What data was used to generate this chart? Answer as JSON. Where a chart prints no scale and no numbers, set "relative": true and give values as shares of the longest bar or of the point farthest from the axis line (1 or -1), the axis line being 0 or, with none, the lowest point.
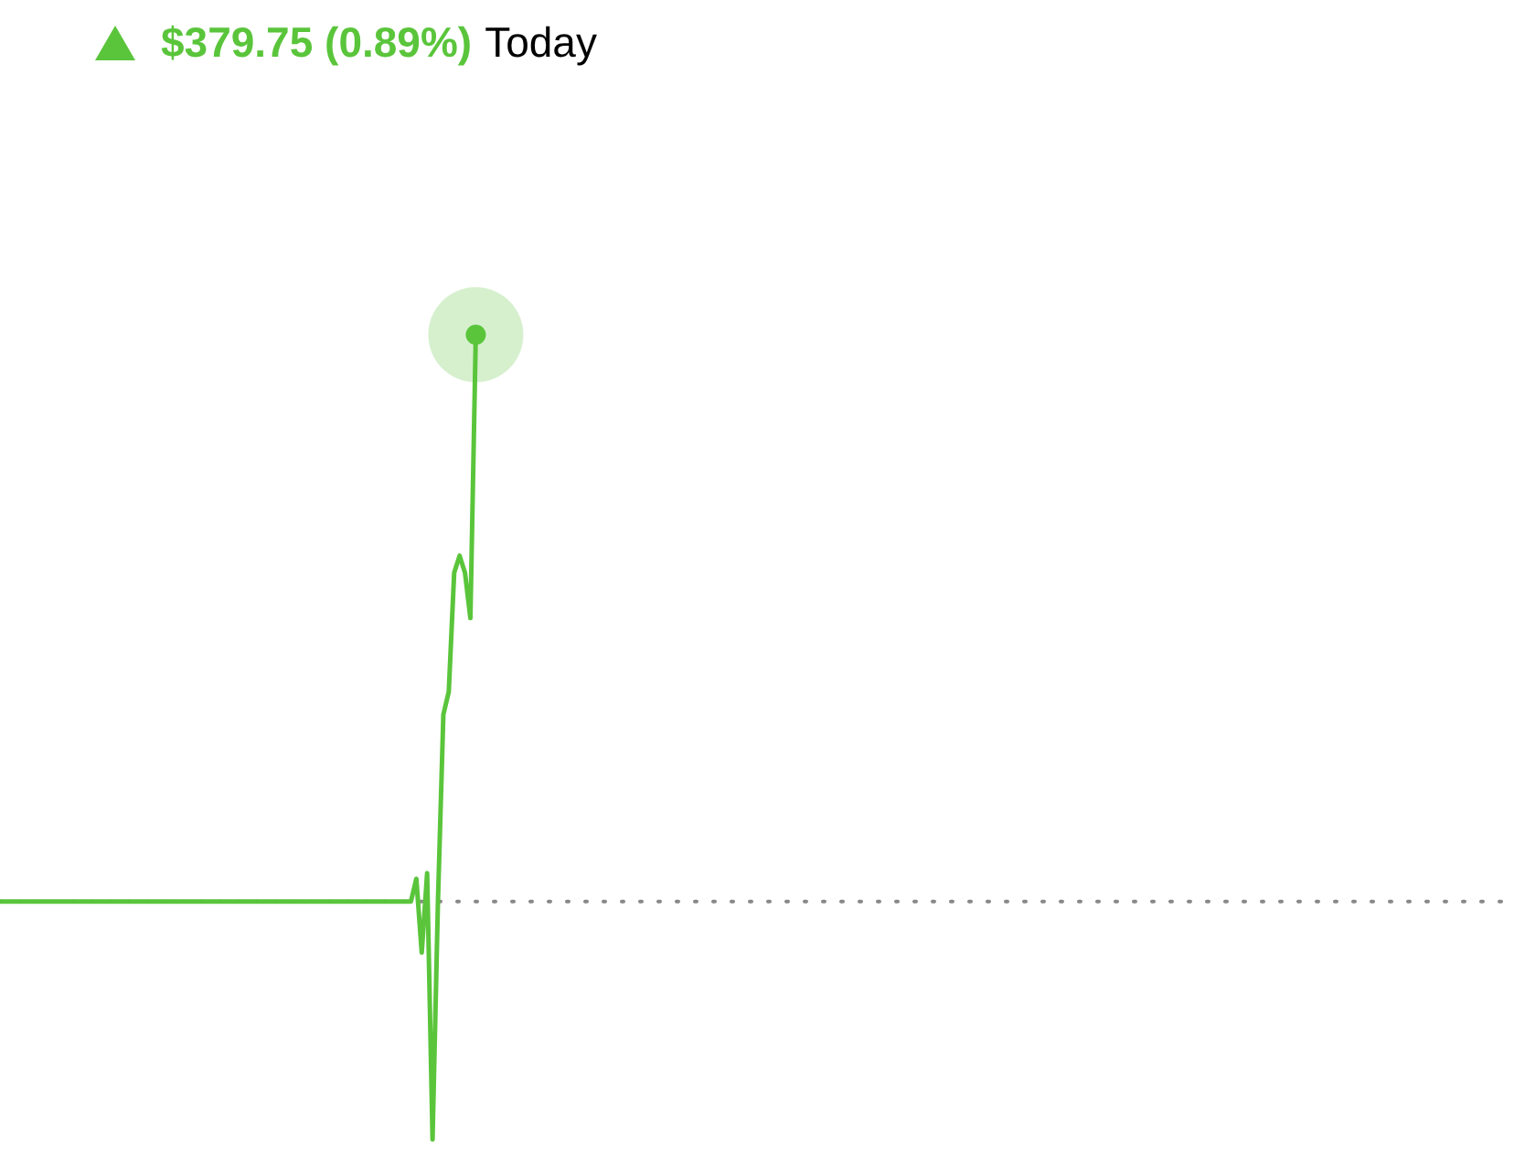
{
  "chart_data": {
    "type": "line",
    "title": "$379.75 (0.89%)",
    "subtitle": "Today",
    "relative": true,
    "categories": [
      null,
      null,
      null,
      null,
      null,
      null,
      null,
      null,
      null,
      null,
      null,
      null,
      null,
      null,
      null,
      null,
      null,
      null,
      null,
      null,
      null,
      null,
      null,
      null,
      null,
      null,
      null,
      null,
      null,
      null,
      null,
      null,
      null,
      null,
      null,
      null,
      null,
      null,
      null,
      null,
      null,
      null,
      null,
      null,
      null,
      null,
      null,
      null,
      null,
      null,
      null,
      null,
      null,
      null,
      null,
      null,
      null,
      null,
      null,
      null,
      null,
      null,
      null,
      null,
      null,
      null,
      null,
      null,
      null,
      null,
      null,
      null,
      null,
      null,
      null,
      null,
      null,
      null,
      null,
      null,
      null,
      null,
      null,
      null,
      null,
      null,
      null,
      null,
      null,
      null,
      null,
      null,
      null,
      null,
      null,
      null,
      null,
      null,
      null,
      null,
      null,
      null,
      null,
      null,
      null,
      null,
      null,
      null,
      null,
      null,
      null,
      null,
      null,
      null,
      null,
      null,
      null,
      null,
      null,
      null,
      null,
      null,
      null,
      null,
      null,
      null,
      null,
      null,
      null,
      null,
      null,
      null,
      null,
      null,
      null,
      null,
      null,
      null,
      null,
      null,
      null,
      null,
      null,
      null,
      null,
      null,
      null,
      null,
      null,
      null,
      null,
      null,
      null,
      null,
      null,
      null,
      null,
      null,
      null,
      null,
      null,
      null,
      null,
      null,
      null,
      null,
      null,
      null,
      null,
      null,
      null,
      null,
      null,
      null,
      null,
      null,
      null,
      null,
      null,
      null,
      null,
      null,
      null,
      null,
      null,
      null,
      null,
      null,
      null,
      null,
      null,
      null,
      null,
      null,
      null,
      null,
      null,
      null,
      null,
      null,
      null,
      null,
      null,
      null,
      null,
      null,
      null,
      null,
      null,
      null,
      null,
      null,
      null,
      null,
      null,
      null,
      null,
      null,
      null,
      null,
      null,
      null,
      null,
      null,
      null,
      null,
      null,
      null,
      null,
      null,
      null,
      null,
      null,
      null,
      null,
      null,
      null,
      null,
      null,
      null,
      null,
      null,
      null,
      null,
      null,
      null,
      null,
      null,
      null,
      null,
      null,
      null,
      null,
      null,
      null,
      null,
      null,
      null,
      null,
      null,
      null,
      null,
      null,
      null,
      null,
      null,
      null,
      null,
      null,
      null,
      null,
      null,
      null,
      null,
      null,
      null,
      null,
      null,
      null,
      null
    ],
    "series": [
      {
        "color": "#5ac53b",
        "values": [
          0,
          0,
          0,
          0,
          0,
          0,
          0,
          0,
          0,
          0,
          0,
          0,
          0,
          0,
          0,
          0,
          0,
          0,
          0,
          0,
          0,
          0,
          0,
          0,
          0,
          0,
          0,
          0,
          0,
          0,
          0,
          0,
          0,
          0,
          0,
          0,
          0,
          0,
          0,
          0,
          0,
          0,
          0,
          0,
          0,
          0,
          0,
          0,
          0,
          0,
          0,
          0,
          0,
          0,
          0,
          0,
          0,
          0,
          0,
          0,
          0,
          0,
          0,
          0,
          0,
          0,
          0,
          0,
          0,
          0,
          0,
          0,
          0,
          0,
          0,
          0,
          0,
          0.04,
          -0.09,
          0.05,
          -0.42,
          0.0,
          0.33,
          0.37,
          0.58,
          0.61,
          0.58,
          0.5,
          1,
          null,
          null,
          null,
          null,
          null,
          null,
          null,
          null,
          null,
          null,
          null,
          null,
          null,
          null,
          null,
          null,
          null,
          null,
          null,
          null,
          null,
          null,
          null,
          null,
          null,
          null,
          null,
          null,
          null,
          null,
          null,
          null,
          null,
          null,
          null,
          null,
          null,
          null,
          null,
          null,
          null,
          null,
          null,
          null,
          null,
          null,
          null,
          null,
          null,
          null,
          null,
          null,
          null,
          null,
          null,
          null,
          null,
          null,
          null,
          null,
          null,
          null,
          null,
          null,
          null,
          null,
          null,
          null,
          null,
          null,
          null,
          null,
          null,
          null,
          null,
          null,
          null,
          null,
          null,
          null,
          null,
          null,
          null,
          null,
          null,
          null,
          null,
          null,
          null,
          null,
          null,
          null,
          null,
          null,
          null,
          null,
          null,
          null,
          null,
          null,
          null,
          null,
          null,
          null,
          null,
          null,
          null,
          null,
          null,
          null,
          null,
          null,
          null,
          null,
          null,
          null,
          null,
          null,
          null,
          null,
          null,
          null,
          null,
          null,
          null,
          null,
          null,
          null,
          null,
          null,
          null,
          null,
          null,
          null,
          null,
          null,
          null,
          null,
          null,
          null,
          null,
          null,
          null,
          null,
          null,
          null,
          null,
          null,
          null,
          null,
          null,
          null,
          null,
          null,
          null,
          null,
          null,
          null,
          null,
          null,
          null,
          null,
          null,
          null,
          null,
          null,
          null,
          null,
          null,
          null,
          null,
          null,
          null,
          null,
          null,
          null,
          null,
          null,
          null,
          null,
          null,
          null,
          null,
          null,
          null,
          null,
          null,
          null,
          null,
          null,
          null
        ]
      }
    ],
    "ref_lines": [
      {
        "axis": "y",
        "value": 0,
        "color": "#888888",
        "line_style": "dotted"
      }
    ],
    "line_style": "solid"
  }
}
